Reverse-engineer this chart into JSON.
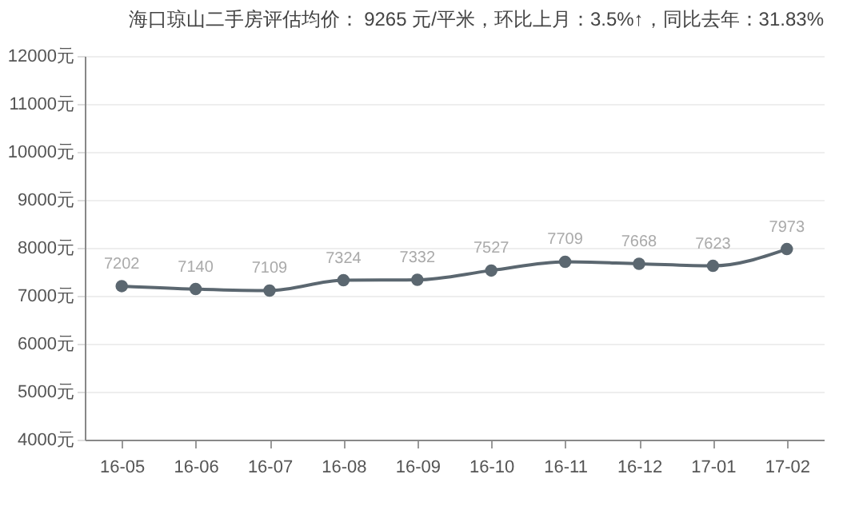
{
  "chart_data": {
    "type": "line",
    "title": "海口琼山二手房评估均价： 9265 元/平米，环比上月：3.5%↑，同比去年：31.83%",
    "categories": [
      "16-05",
      "16-06",
      "16-07",
      "16-08",
      "16-09",
      "16-10",
      "16-11",
      "16-12",
      "17-01",
      "17-02"
    ],
    "series": [
      {
        "color": "#5b6770",
        "values": [
          7202,
          7140,
          7109,
          7324,
          7332,
          7527,
          7709,
          7668,
          7623,
          7973
        ]
      }
    ],
    "ylim": [
      4000,
      12000
    ],
    "yticks": [
      {
        "value": 4000,
        "label": "4000元"
      },
      {
        "value": 5000,
        "label": "5000元"
      },
      {
        "value": 6000,
        "label": "6000元"
      },
      {
        "value": 7000,
        "label": "7000元"
      },
      {
        "value": 8000,
        "label": "8000元"
      },
      {
        "value": 9000,
        "label": "9000元"
      },
      {
        "value": 10000,
        "label": "10000元"
      },
      {
        "value": 11000,
        "label": "11000元"
      },
      {
        "value": 12000,
        "label": "12000元"
      }
    ],
    "grid": "y",
    "marker": "circle",
    "line_style": "solid",
    "data_labels": true
  }
}
